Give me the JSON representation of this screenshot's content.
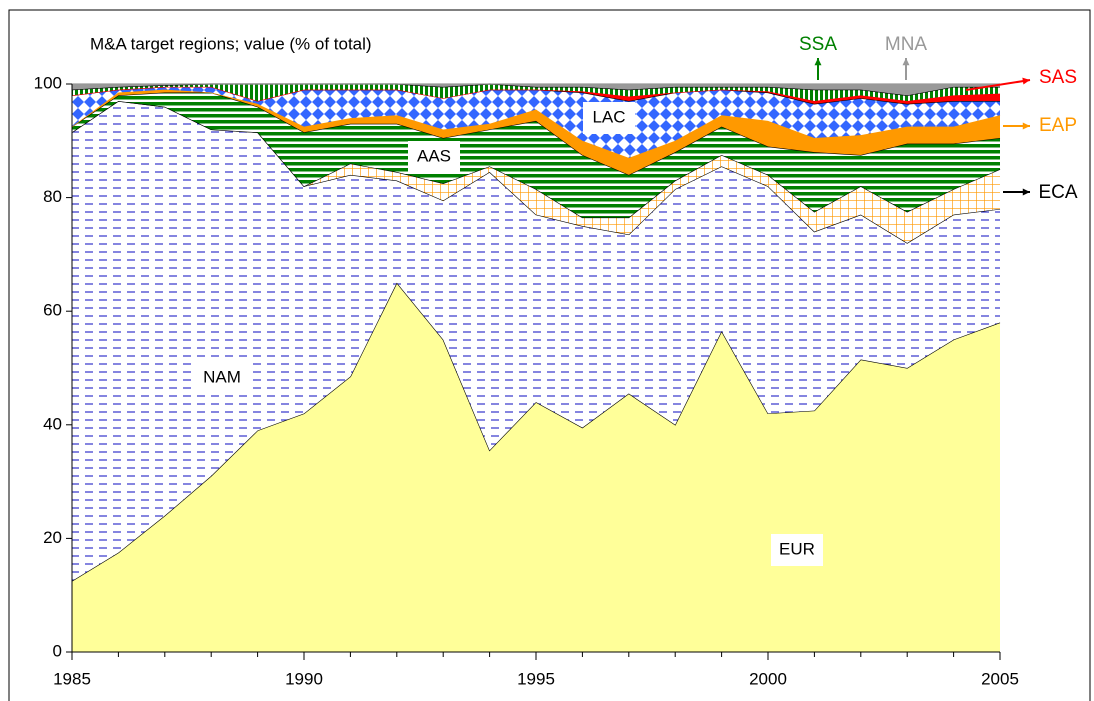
{
  "chart_data": {
    "type": "stacked_area",
    "title": "M&A target regions; value (% of total)",
    "x": [
      1985,
      1986,
      1987,
      1988,
      1989,
      1990,
      1991,
      1992,
      1993,
      1994,
      1995,
      1996,
      1997,
      1998,
      1999,
      2000,
      2001,
      2002,
      2003,
      2004,
      2005
    ],
    "xlim": [
      1985,
      2005
    ],
    "xticks": [
      1985,
      1990,
      1995,
      2000,
      2005
    ],
    "ylim": [
      0,
      100
    ],
    "yticks": [
      0,
      20,
      40,
      60,
      80,
      100
    ],
    "series": [
      {
        "name": "EUR",
        "color": "#ffff99",
        "pattern": "solid",
        "values": [
          12.5,
          17.5,
          24,
          31,
          39,
          42,
          48.5,
          65,
          55,
          35.5,
          44,
          39.5,
          45.5,
          40,
          56.5,
          42,
          42.5,
          51.5,
          50,
          55,
          58
        ]
      },
      {
        "name": "NAM",
        "color": "#3333cc",
        "pattern": "hdash",
        "values": [
          79,
          79.5,
          72,
          61,
          52.5,
          40,
          35.5,
          18,
          24.5,
          49,
          33,
          35.5,
          28,
          41.5,
          29,
          40,
          31.5,
          25.5,
          22,
          22,
          20
        ]
      },
      {
        "name": "ECA",
        "color": "#ff9900",
        "pattern": "grid",
        "values": [
          0,
          0,
          0,
          0,
          0,
          0,
          2,
          1.5,
          3,
          1,
          4.5,
          1.5,
          3,
          1.5,
          2,
          2,
          3.5,
          5,
          5.5,
          4.5,
          7
        ]
      },
      {
        "name": "AAS",
        "color": "#008000",
        "pattern": "hstripe",
        "values": [
          1,
          1,
          2.5,
          6.5,
          4.5,
          9.5,
          7,
          8.5,
          8,
          6.5,
          12,
          11,
          7.5,
          5,
          5,
          5,
          10.5,
          5.5,
          12,
          8,
          5.5
        ]
      },
      {
        "name": "EAP",
        "color": "#ff9900",
        "pattern": "solid",
        "values": [
          0,
          0.5,
          0.5,
          0,
          0.5,
          1,
          1,
          1.5,
          1.5,
          1,
          2,
          2.5,
          3,
          2,
          2,
          4.5,
          2.5,
          3.5,
          3,
          3,
          4
        ]
      },
      {
        "name": "LAC",
        "color": "#3366ff",
        "pattern": "diamond",
        "values": [
          5.5,
          0.5,
          0.5,
          1,
          0.5,
          6.5,
          5,
          4.5,
          5.5,
          6,
          3.5,
          8.5,
          10,
          8.5,
          4.5,
          5,
          6,
          6.5,
          4,
          4.5,
          2.5
        ]
      },
      {
        "name": "SAS",
        "color": "#ff0000",
        "pattern": "solid",
        "values": [
          0,
          0,
          0,
          0,
          0,
          0,
          0,
          0,
          0,
          0,
          0,
          0.2,
          0.8,
          0,
          0,
          0.2,
          0.5,
          0.5,
          0.5,
          1,
          1.3
        ]
      },
      {
        "name": "SSA",
        "color": "#008000",
        "pattern": "vstripe",
        "values": [
          1,
          0.5,
          0.3,
          0.5,
          3,
          1,
          1,
          1,
          2,
          1,
          0.5,
          0.8,
          1.2,
          1,
          0.5,
          0.8,
          2,
          1,
          1,
          1.5,
          1.2
        ]
      },
      {
        "name": "MNA",
        "color": "#999999",
        "pattern": "solid",
        "values": [
          1,
          0.5,
          0.2,
          0,
          0,
          0,
          0,
          0,
          0.5,
          0,
          0.5,
          0.5,
          1,
          0.5,
          0.5,
          0.5,
          1,
          1,
          2,
          0.5,
          0.5
        ]
      }
    ]
  }
}
